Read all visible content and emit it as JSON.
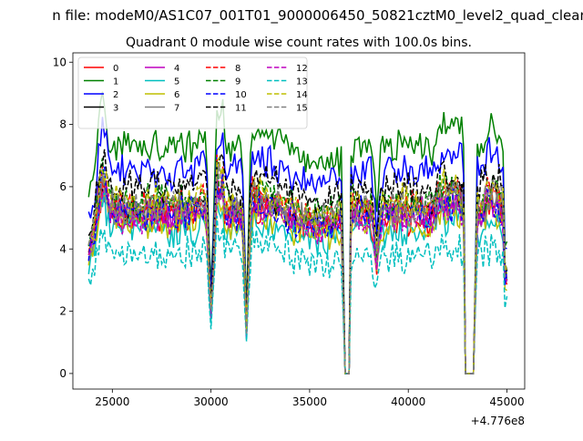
{
  "suptitle": "n file: modeM0/AS1C07_001T01_9000006450_50821cztM0_level2_quad_clean",
  "chart_data": {
    "type": "line",
    "title": "Quadrant 0 module wise count rates with 100.0s bins.",
    "xlabel": "",
    "ylabel": "",
    "x_offset_label": "+4.776e8",
    "xlim": [
      23000,
      45900
    ],
    "ylim": [
      -0.5,
      10.3
    ],
    "x_range": [
      23800,
      45000
    ],
    "x_step": 100,
    "xticks": [
      25000,
      30000,
      35000,
      40000,
      45000
    ],
    "xtick_labels": [
      "25000",
      "30000",
      "35000",
      "40000",
      "45000"
    ],
    "yticks": [
      0,
      2,
      4,
      6,
      8,
      10
    ],
    "ytick_labels": [
      "0",
      "2",
      "4",
      "6",
      "8",
      "10"
    ],
    "grid": false,
    "legend_position": "top-left",
    "legend_columns": 4,
    "dips": [
      {
        "center": 30000,
        "width": 150,
        "depth": 0.62
      },
      {
        "center": 31800,
        "width": 120,
        "depth": 0.75
      },
      {
        "start": 36750,
        "end": 37000,
        "floor": 0
      },
      {
        "center": 38400,
        "width": 150,
        "depth": 0.3
      },
      {
        "start": 42900,
        "end": 43350,
        "floor": 0
      },
      {
        "center": 44950,
        "width": 80,
        "depth": 0.6
      }
    ],
    "series": [
      {
        "name": "0",
        "color": "#ff0000",
        "dash": "solid",
        "level": 5.0
      },
      {
        "name": "1",
        "color": "#008000",
        "dash": "solid",
        "level": 7.3
      },
      {
        "name": "2",
        "color": "#0000ff",
        "dash": "solid",
        "level": 6.5
      },
      {
        "name": "3",
        "color": "#000000",
        "dash": "solid",
        "level": 5.3
      },
      {
        "name": "4",
        "color": "#bf00bf",
        "dash": "solid",
        "level": 5.1
      },
      {
        "name": "5",
        "color": "#00bfbf",
        "dash": "solid",
        "level": 4.6
      },
      {
        "name": "6",
        "color": "#bfbf00",
        "dash": "solid",
        "level": 4.8
      },
      {
        "name": "7",
        "color": "#808080",
        "dash": "solid",
        "level": 5.2
      },
      {
        "name": "8",
        "color": "#ff0000",
        "dash": "dashed",
        "level": 5.4
      },
      {
        "name": "9",
        "color": "#008000",
        "dash": "dashed",
        "level": 5.5
      },
      {
        "name": "10",
        "color": "#0000ff",
        "dash": "dashed",
        "level": 5.1
      },
      {
        "name": "11",
        "color": "#000000",
        "dash": "dashed",
        "level": 6.0
      },
      {
        "name": "12",
        "color": "#bf00bf",
        "dash": "dashed",
        "level": 5.0
      },
      {
        "name": "13",
        "color": "#00bfbf",
        "dash": "dashed",
        "level": 3.8
      },
      {
        "name": "14",
        "color": "#bfbf00",
        "dash": "dashed",
        "level": 5.5
      },
      {
        "name": "15",
        "color": "#808080",
        "dash": "dashed",
        "level": 5.3
      }
    ]
  }
}
